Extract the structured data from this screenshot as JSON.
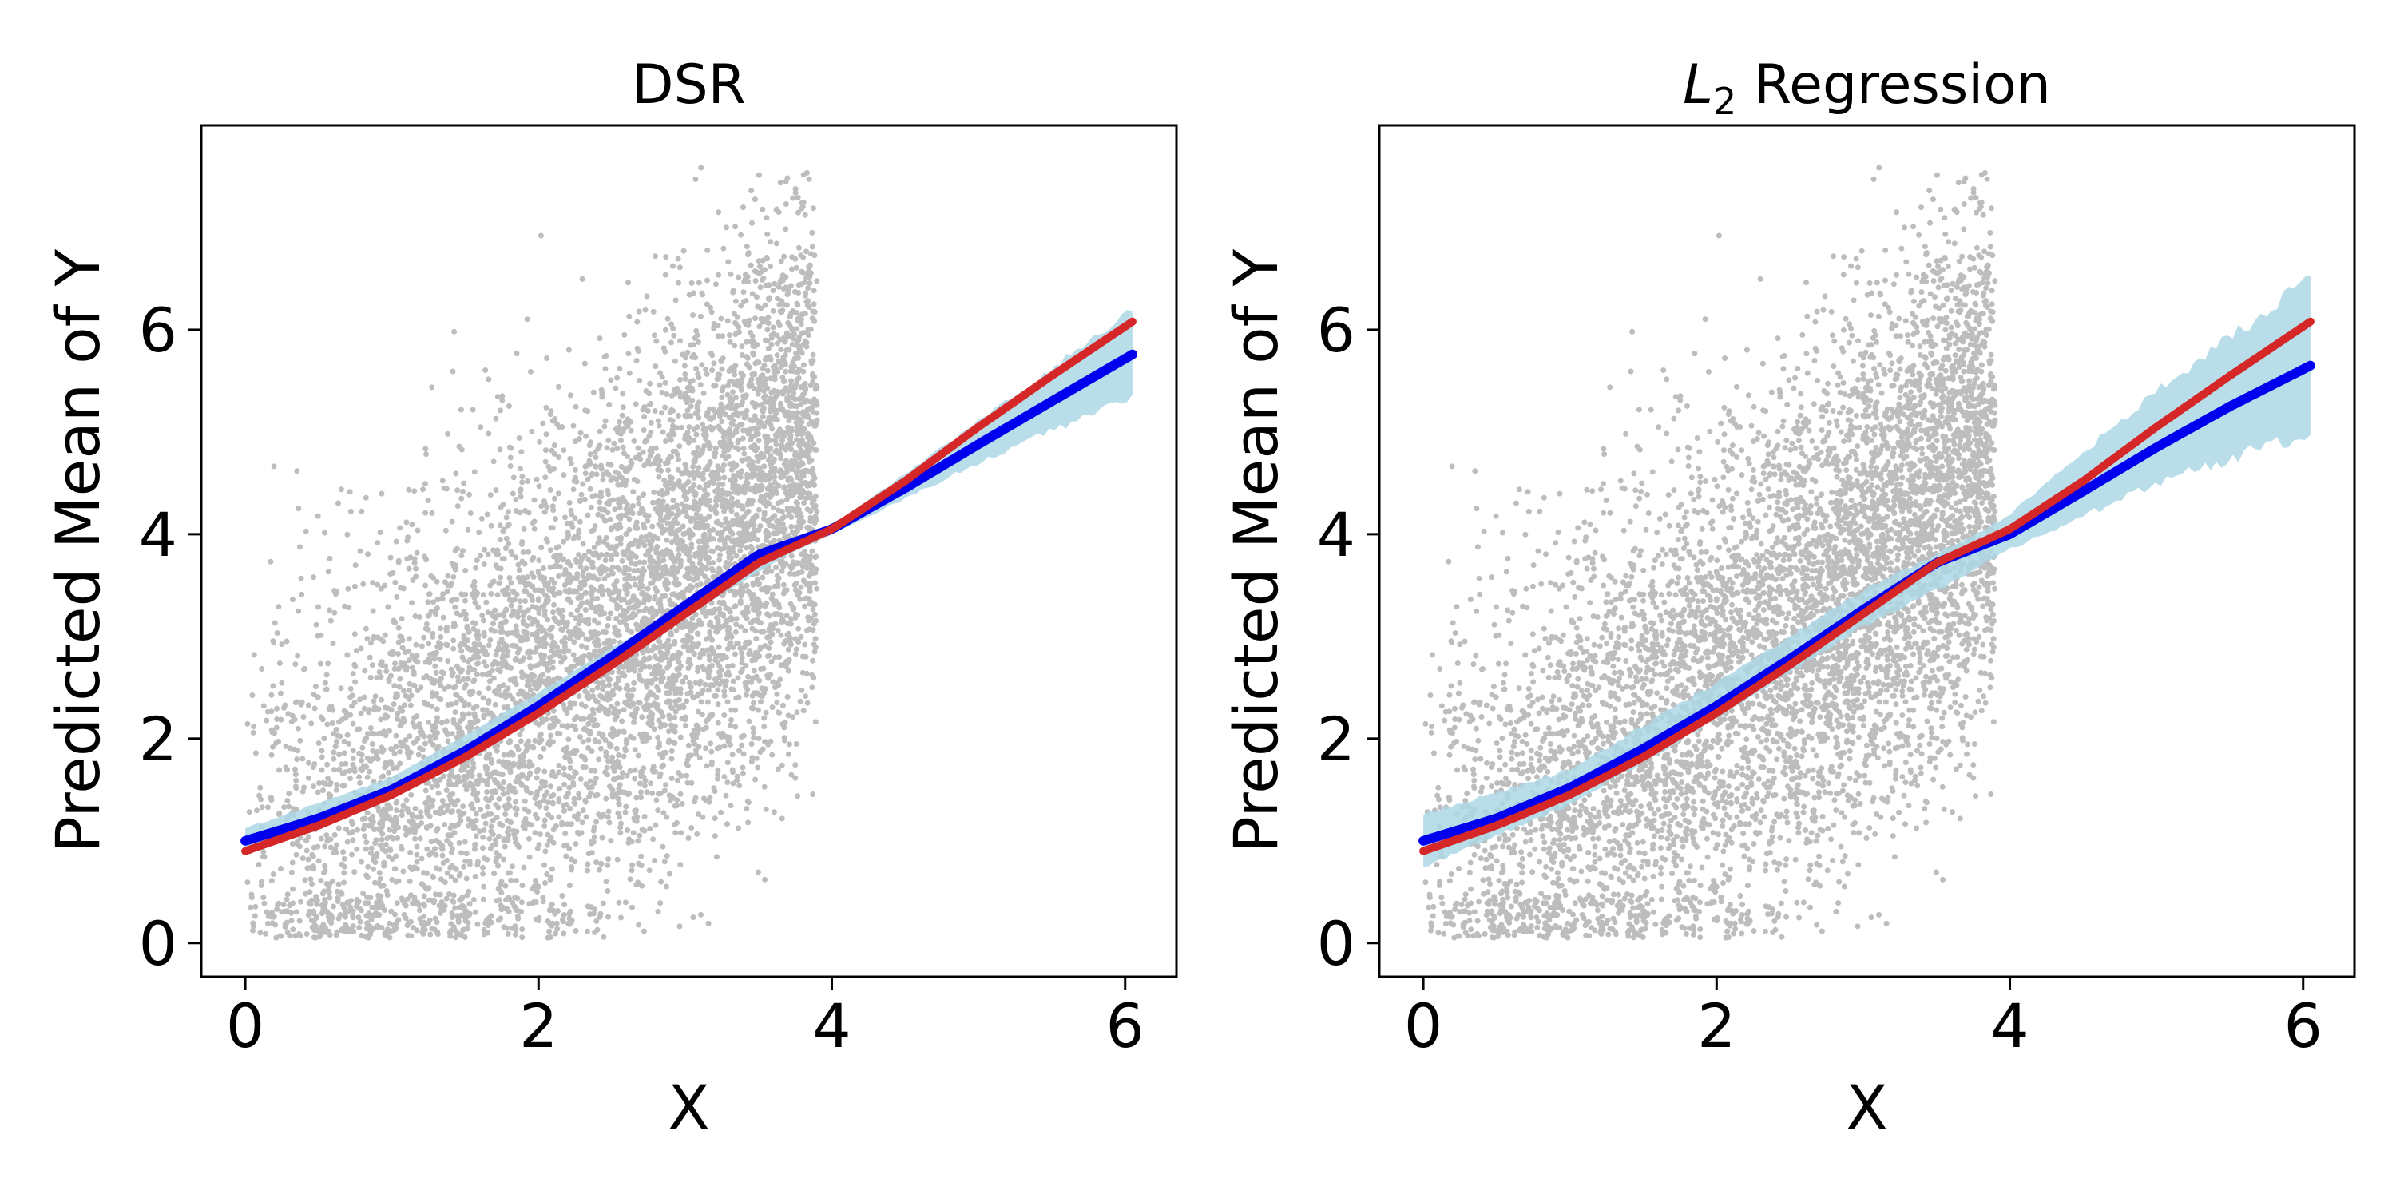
{
  "chart_data": [
    {
      "type": "line",
      "title": "DSR",
      "title_parts": {
        "main": "DSR",
        "sub": "",
        "rest": ""
      },
      "xlabel": "X",
      "ylabel": "Predicted Mean of Y",
      "xlim": [
        -0.3,
        6.35
      ],
      "ylim": [
        -0.33,
        8.0
      ],
      "xticks": [
        0,
        2,
        4,
        6
      ],
      "yticks": [
        0,
        2,
        4,
        6
      ],
      "xtick_labels": [
        "0",
        "2",
        "4",
        "6"
      ],
      "ytick_labels": [
        "0",
        "2",
        "4",
        "6"
      ],
      "grid": false,
      "legend": "none",
      "background_points": {
        "color": "#bdbdbd",
        "x_range": [
          0,
          3.9
        ],
        "y_range": [
          0.05,
          7.6
        ]
      },
      "band": {
        "color": "#add8e6",
        "x": [
          0,
          1,
          2,
          3,
          3.7,
          4,
          5,
          6.05
        ],
        "lower": [
          0.88,
          1.5,
          2.35,
          3.2,
          3.8,
          4.0,
          4.7,
          5.35
        ],
        "upper": [
          1.12,
          1.62,
          2.45,
          3.32,
          3.85,
          4.08,
          5.1,
          6.2
        ]
      },
      "series": [
        {
          "color": "#0000ee",
          "x": [
            0,
            0.5,
            1,
            1.5,
            2,
            2.5,
            3,
            3.5,
            4,
            4.5,
            5,
            5.5,
            6.05
          ],
          "y": [
            1.0,
            1.22,
            1.5,
            1.88,
            2.32,
            2.8,
            3.3,
            3.8,
            4.05,
            4.45,
            4.88,
            5.3,
            5.76
          ]
        },
        {
          "color": "#d62728",
          "x": [
            0,
            0.5,
            1,
            1.5,
            2,
            2.5,
            3,
            3.5,
            4,
            4.5,
            5,
            5.5,
            6.05
          ],
          "y": [
            0.9,
            1.15,
            1.45,
            1.82,
            2.25,
            2.72,
            3.22,
            3.72,
            4.05,
            4.52,
            5.05,
            5.55,
            6.08
          ]
        }
      ]
    },
    {
      "type": "line",
      "title": "L2 Regression",
      "title_parts": {
        "main": "L",
        "sub": "2",
        "rest": " Regression"
      },
      "xlabel": "X",
      "ylabel": "Predicted Mean of Y",
      "xlim": [
        -0.3,
        6.35
      ],
      "ylim": [
        -0.33,
        8.0
      ],
      "xticks": [
        0,
        2,
        4,
        6
      ],
      "yticks": [
        0,
        2,
        4,
        6
      ],
      "xtick_labels": [
        "0",
        "2",
        "4",
        "6"
      ],
      "ytick_labels": [
        "0",
        "2",
        "4",
        "6"
      ],
      "grid": false,
      "legend": "none",
      "background_points": {
        "color": "#bdbdbd",
        "x_range": [
          0,
          3.9
        ],
        "y_range": [
          0.05,
          7.6
        ]
      },
      "band": {
        "color": "#add8e6",
        "x": [
          0,
          1,
          2,
          3,
          3.7,
          4,
          5,
          6.05
        ],
        "lower": [
          0.75,
          1.35,
          2.2,
          3.1,
          3.6,
          3.85,
          4.5,
          5.0
        ],
        "upper": [
          1.25,
          1.7,
          2.55,
          3.45,
          3.95,
          4.2,
          5.4,
          6.5
        ]
      },
      "series": [
        {
          "color": "#0000ee",
          "x": [
            0,
            0.5,
            1,
            1.5,
            2,
            2.5,
            3,
            3.5,
            4,
            4.5,
            5,
            5.5,
            6.05
          ],
          "y": [
            1.0,
            1.22,
            1.52,
            1.9,
            2.32,
            2.78,
            3.26,
            3.72,
            4.0,
            4.42,
            4.85,
            5.25,
            5.65
          ]
        },
        {
          "color": "#d62728",
          "x": [
            0,
            0.5,
            1,
            1.5,
            2,
            2.5,
            3,
            3.5,
            4,
            4.5,
            5,
            5.5,
            6.05
          ],
          "y": [
            0.9,
            1.15,
            1.45,
            1.82,
            2.25,
            2.72,
            3.22,
            3.72,
            4.05,
            4.52,
            5.05,
            5.55,
            6.08
          ]
        }
      ]
    }
  ]
}
